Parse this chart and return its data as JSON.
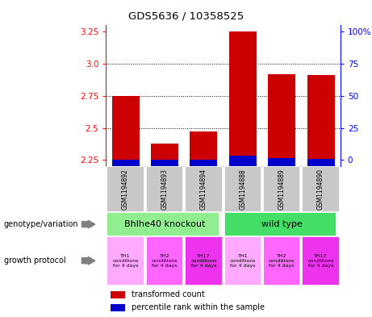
{
  "title": "GDS5636 / 10358525",
  "samples": [
    "GSM1194892",
    "GSM1194893",
    "GSM1194894",
    "GSM1194888",
    "GSM1194889",
    "GSM1194890"
  ],
  "red_values": [
    2.75,
    2.38,
    2.47,
    3.25,
    2.92,
    2.91
  ],
  "blue_values": [
    2.254,
    2.252,
    2.253,
    2.282,
    2.262,
    2.258
  ],
  "ylim_left": [
    2.2,
    3.3
  ],
  "yticks_left": [
    2.25,
    2.5,
    2.75,
    3.0,
    3.25
  ],
  "yticks_right": [
    0,
    25,
    50,
    75,
    100
  ],
  "bar_bottom": 2.2,
  "genotype_labels": [
    "Bhlhe40 knockout",
    "wild type"
  ],
  "genotype_colors": [
    "#90EE90",
    "#44DD66"
  ],
  "growth_labels": [
    "TH1\nconditions\nfor 4 days",
    "TH2\nconditions\nfor 4 days",
    "TH17\nconditions\nfor 4 days",
    "TH1\nconditions\nfor 4 days",
    "TH2\nconditions\nfor 4 days",
    "TH17\nconditions\nfor 4 days"
  ],
  "growth_colors": [
    "#FFAAFF",
    "#FF66FF",
    "#EE33EE",
    "#FFAAFF",
    "#FF66FF",
    "#EE33EE"
  ],
  "legend_red": "transformed count",
  "legend_blue": "percentile rank within the sample",
  "label_genotype": "genotype/variation",
  "label_growth": "growth protocol",
  "red_color": "#CC0000",
  "blue_color": "#0000CC",
  "sample_box_color": "#C8C8C8",
  "bar_width": 0.7
}
